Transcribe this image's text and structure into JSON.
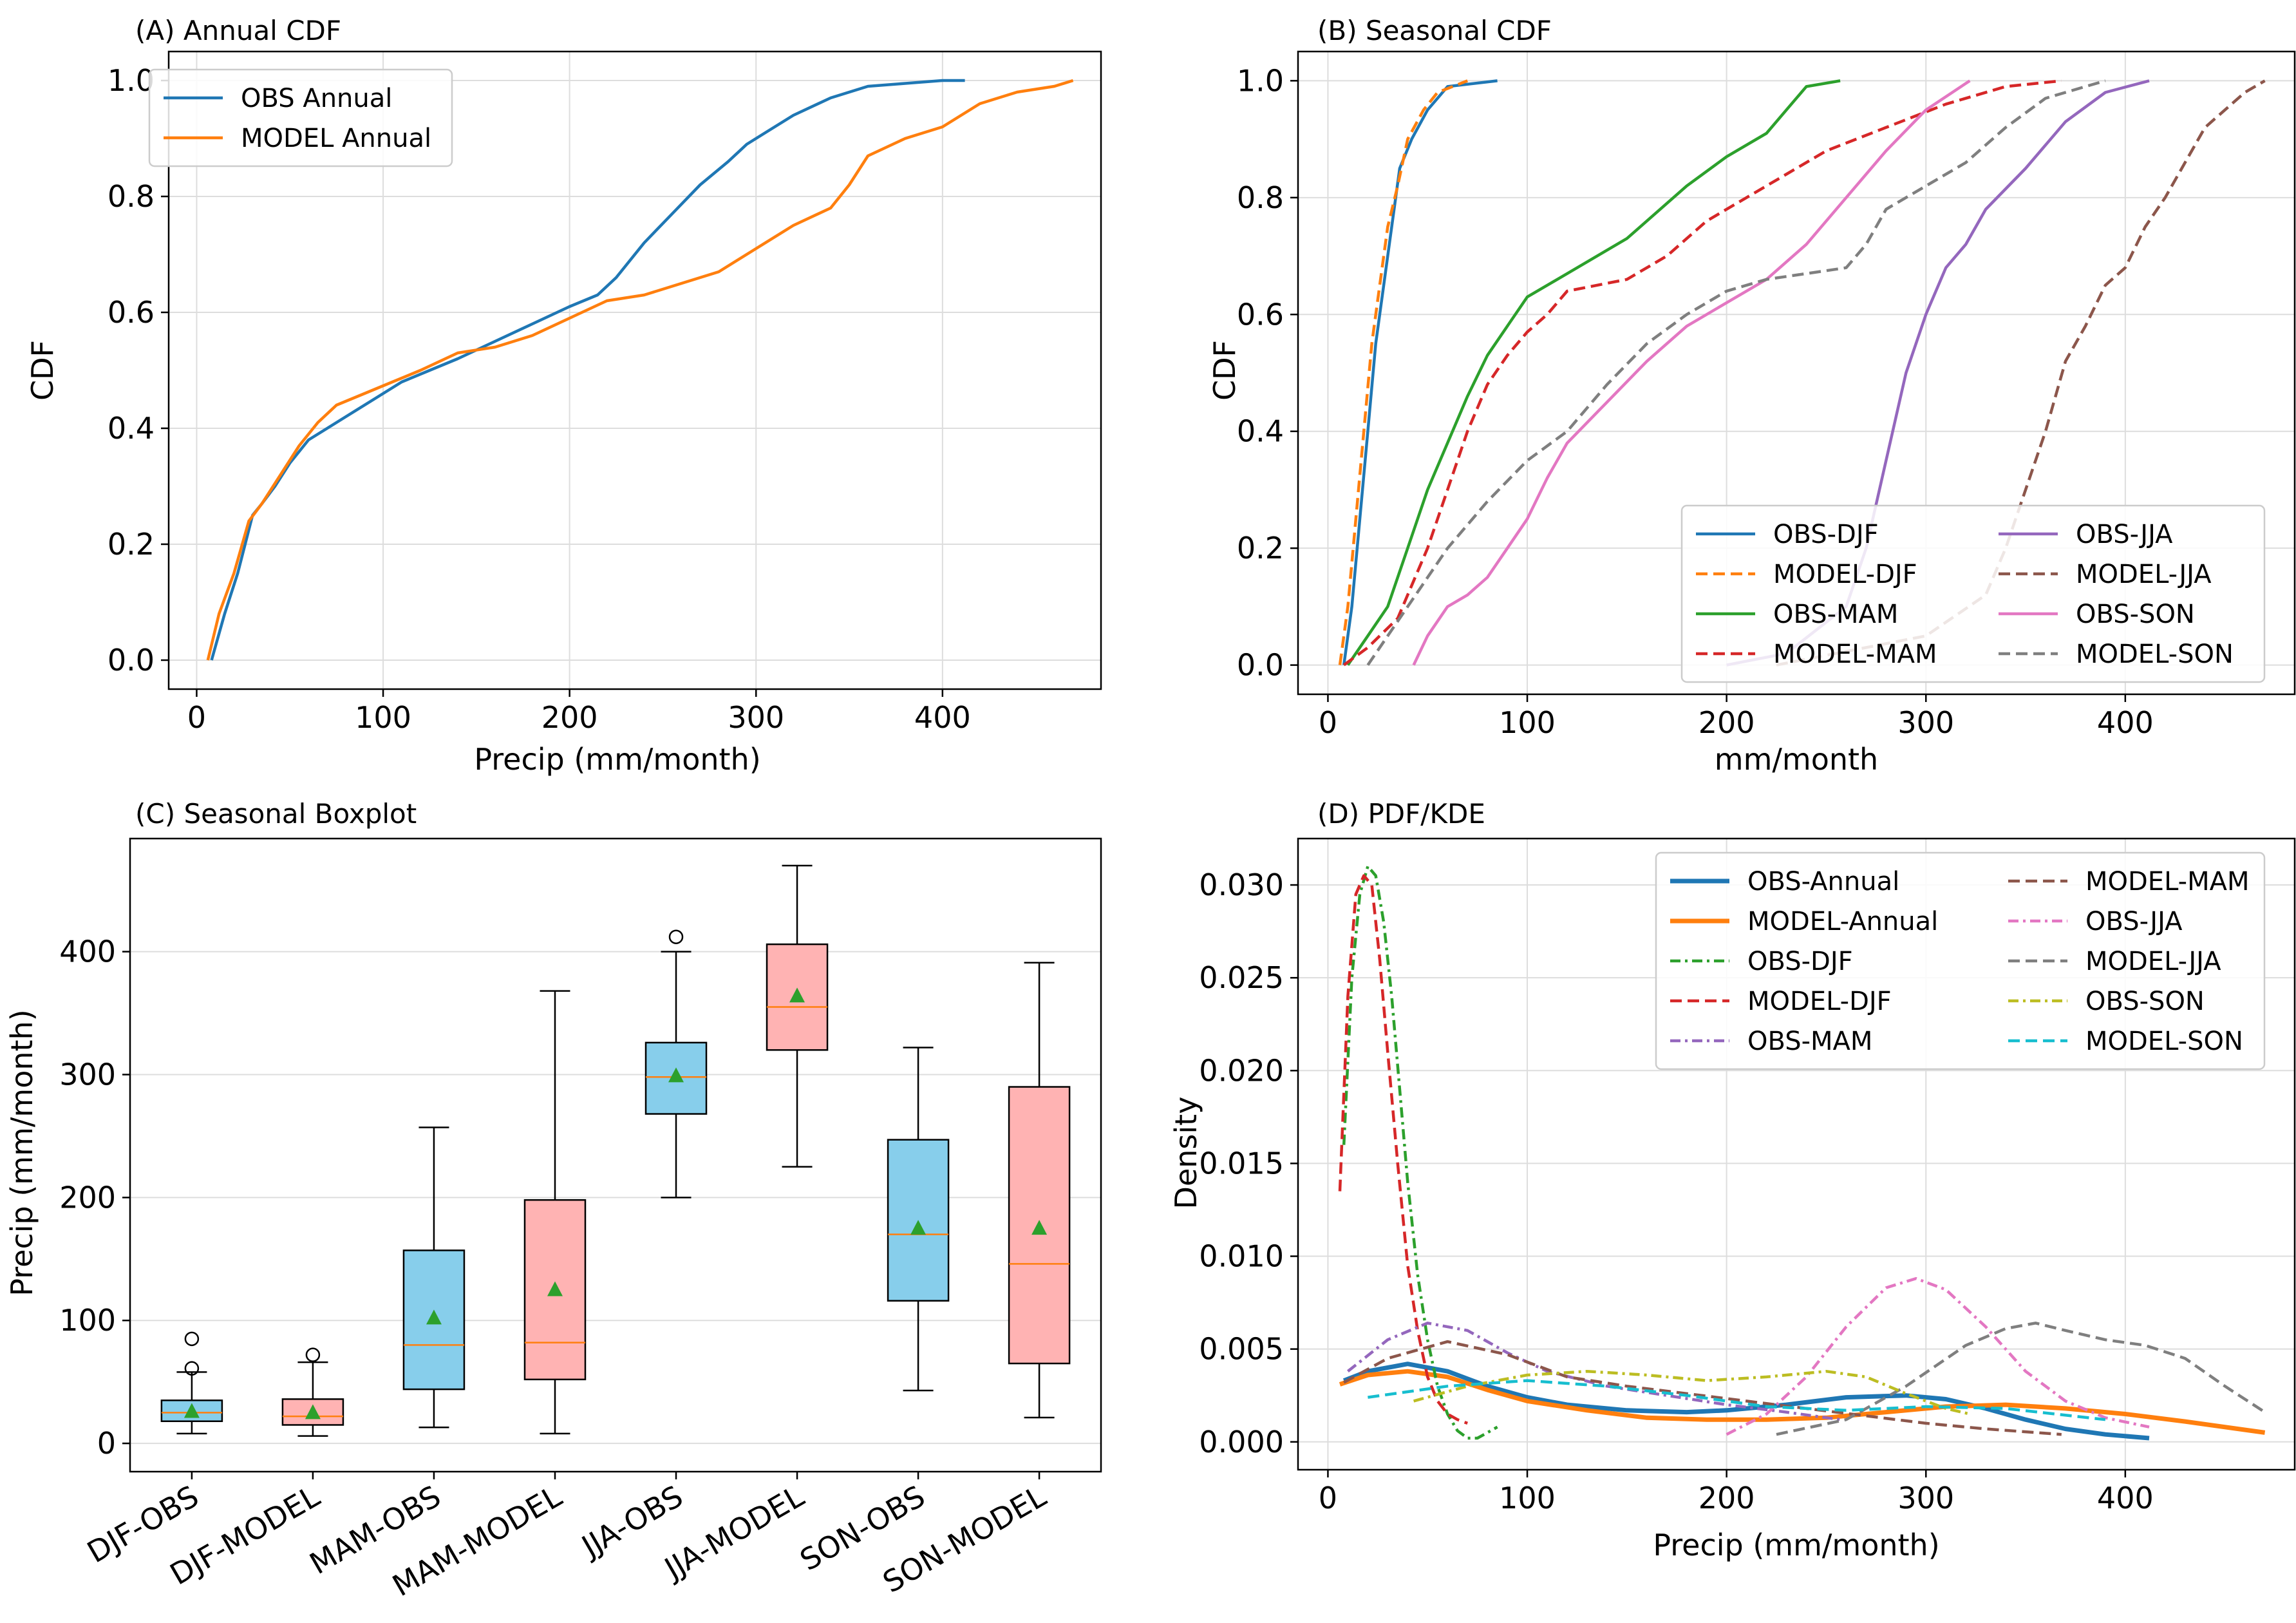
{
  "colors": {
    "c0": "#1f77b4",
    "c1": "#ff7f0e",
    "c2": "#2ca02c",
    "c3": "#d62728",
    "c4": "#9467bd",
    "c5": "#8c564b",
    "c6": "#e377c2",
    "c7": "#7f7f7f",
    "c8": "#bcbd22",
    "c9": "#17becf",
    "box_obs": "#87ceeb",
    "box_model": "#ffb3b3"
  },
  "chart_data": [
    {
      "id": "A",
      "type": "line",
      "title": "(A) Annual CDF",
      "xlabel": "Precip (mm/month)",
      "ylabel": "CDF",
      "xlim": [
        -15,
        485
      ],
      "ylim": [
        -0.05,
        1.05
      ],
      "xticks": [
        0,
        100,
        200,
        300,
        400
      ],
      "yticks": [
        0.0,
        0.2,
        0.4,
        0.6,
        0.8,
        1.0
      ],
      "legend_loc": "upper-left",
      "series": [
        {
          "name": "OBS Annual",
          "color": "c0",
          "dash": "solid",
          "x": [
            8,
            15,
            22,
            30,
            35,
            42,
            50,
            60,
            70,
            80,
            95,
            110,
            125,
            140,
            160,
            180,
            200,
            215,
            225,
            240,
            255,
            270,
            285,
            295,
            305,
            320,
            340,
            360,
            380,
            400,
            412
          ],
          "y": [
            0,
            0.08,
            0.15,
            0.25,
            0.27,
            0.3,
            0.34,
            0.38,
            0.4,
            0.42,
            0.45,
            0.48,
            0.5,
            0.52,
            0.55,
            0.58,
            0.61,
            0.63,
            0.66,
            0.72,
            0.77,
            0.82,
            0.86,
            0.89,
            0.91,
            0.94,
            0.97,
            0.99,
            0.995,
            1.0,
            1.0
          ]
        },
        {
          "name": "MODEL Annual",
          "color": "c1",
          "dash": "solid",
          "x": [
            6,
            12,
            20,
            28,
            35,
            45,
            55,
            65,
            75,
            90,
            105,
            120,
            140,
            160,
            180,
            200,
            220,
            240,
            260,
            280,
            300,
            320,
            340,
            350,
            360,
            380,
            400,
            420,
            440,
            460,
            470
          ],
          "y": [
            0,
            0.08,
            0.15,
            0.24,
            0.27,
            0.32,
            0.37,
            0.41,
            0.44,
            0.46,
            0.48,
            0.5,
            0.53,
            0.54,
            0.56,
            0.59,
            0.62,
            0.63,
            0.65,
            0.67,
            0.71,
            0.75,
            0.78,
            0.82,
            0.87,
            0.9,
            0.92,
            0.96,
            0.98,
            0.99,
            1.0
          ]
        }
      ]
    },
    {
      "id": "B",
      "type": "line",
      "title": "(B) Seasonal CDF",
      "xlabel": "mm/month",
      "ylabel": "CDF",
      "xlim": [
        -15,
        485
      ],
      "ylim": [
        -0.05,
        1.05
      ],
      "xticks": [
        0,
        100,
        200,
        300,
        400
      ],
      "yticks": [
        0.0,
        0.2,
        0.4,
        0.6,
        0.8,
        1.0
      ],
      "legend_loc": "lower-right",
      "legend_cols": 2,
      "series": [
        {
          "name": "OBS-DJF",
          "color": "c0",
          "dash": "solid",
          "x": [
            8,
            12,
            16,
            20,
            24,
            28,
            32,
            36,
            42,
            50,
            60,
            85
          ],
          "y": [
            0,
            0.1,
            0.25,
            0.4,
            0.55,
            0.65,
            0.75,
            0.85,
            0.9,
            0.95,
            0.99,
            1.0
          ]
        },
        {
          "name": "MODEL-DJF",
          "color": "c1",
          "dash": "dash",
          "x": [
            6,
            10,
            14,
            18,
            22,
            26,
            30,
            35,
            40,
            48,
            55,
            70
          ],
          "y": [
            0,
            0.1,
            0.25,
            0.4,
            0.55,
            0.65,
            0.75,
            0.82,
            0.9,
            0.95,
            0.98,
            1.0
          ]
        },
        {
          "name": "OBS-MAM",
          "color": "c2",
          "dash": "solid",
          "x": [
            10,
            20,
            30,
            40,
            50,
            60,
            70,
            80,
            90,
            100,
            120,
            150,
            180,
            200,
            220,
            230,
            240,
            257
          ],
          "y": [
            0,
            0.05,
            0.1,
            0.2,
            0.3,
            0.38,
            0.46,
            0.53,
            0.58,
            0.63,
            0.67,
            0.73,
            0.82,
            0.87,
            0.91,
            0.95,
            0.99,
            1.0
          ]
        },
        {
          "name": "MODEL-MAM",
          "color": "c3",
          "dash": "dash",
          "x": [
            8,
            20,
            35,
            50,
            60,
            70,
            80,
            90,
            100,
            110,
            120,
            150,
            170,
            190,
            210,
            230,
            250,
            280,
            310,
            340,
            368
          ],
          "y": [
            0,
            0.03,
            0.08,
            0.2,
            0.3,
            0.4,
            0.48,
            0.53,
            0.57,
            0.6,
            0.64,
            0.66,
            0.7,
            0.76,
            0.8,
            0.84,
            0.88,
            0.92,
            0.96,
            0.99,
            1.0
          ]
        },
        {
          "name": "OBS-JJA",
          "color": "c4",
          "dash": "solid",
          "x": [
            200,
            230,
            260,
            270,
            280,
            290,
            300,
            310,
            320,
            330,
            350,
            370,
            390,
            412
          ],
          "y": [
            0,
            0.02,
            0.1,
            0.2,
            0.35,
            0.5,
            0.6,
            0.68,
            0.72,
            0.78,
            0.85,
            0.93,
            0.98,
            1.0
          ]
        },
        {
          "name": "MODEL-JJA",
          "color": "c5",
          "dash": "dash",
          "x": [
            225,
            300,
            330,
            340,
            350,
            360,
            370,
            380,
            390,
            400,
            410,
            420,
            430,
            440,
            450,
            460,
            470
          ],
          "y": [
            0,
            0.05,
            0.12,
            0.2,
            0.3,
            0.4,
            0.52,
            0.58,
            0.65,
            0.68,
            0.75,
            0.8,
            0.86,
            0.92,
            0.95,
            0.98,
            1.0
          ]
        },
        {
          "name": "OBS-SON",
          "color": "c6",
          "dash": "solid",
          "x": [
            43,
            50,
            60,
            70,
            80,
            90,
            100,
            110,
            120,
            140,
            160,
            180,
            200,
            220,
            240,
            260,
            280,
            300,
            322
          ],
          "y": [
            0,
            0.05,
            0.1,
            0.12,
            0.15,
            0.2,
            0.25,
            0.32,
            0.38,
            0.45,
            0.52,
            0.58,
            0.62,
            0.66,
            0.72,
            0.8,
            0.88,
            0.95,
            1.0
          ]
        },
        {
          "name": "MODEL-SON",
          "color": "c7",
          "dash": "dash",
          "x": [
            20,
            40,
            60,
            80,
            100,
            120,
            140,
            160,
            180,
            200,
            220,
            240,
            260,
            270,
            280,
            300,
            320,
            340,
            360,
            380,
            390
          ],
          "y": [
            0,
            0.1,
            0.2,
            0.28,
            0.35,
            0.4,
            0.48,
            0.55,
            0.6,
            0.64,
            0.66,
            0.67,
            0.68,
            0.72,
            0.78,
            0.82,
            0.86,
            0.92,
            0.97,
            0.99,
            1.0
          ]
        }
      ]
    },
    {
      "id": "C",
      "type": "box",
      "title": "(C) Seasonal Boxplot",
      "ylabel": "Precip (mm/month)",
      "ylim": [
        -23,
        492
      ],
      "yticks": [
        0,
        100,
        200,
        300,
        400
      ],
      "categories": [
        "DJF-OBS",
        "DJF-MODEL",
        "MAM-OBS",
        "MAM-MODEL",
        "JJA-OBS",
        "JJA-MODEL",
        "SON-OBS",
        "SON-MODEL"
      ],
      "boxes": [
        {
          "label": "DJF-OBS",
          "group": "obs",
          "whislo": 8,
          "q1": 18,
          "med": 25,
          "q3": 35,
          "whishi": 58,
          "mean": 26,
          "fliers": [
            61,
            85
          ]
        },
        {
          "label": "DJF-MODEL",
          "group": "model",
          "whislo": 6,
          "q1": 15,
          "med": 22,
          "q3": 36,
          "whishi": 66,
          "mean": 25,
          "fliers": [
            72
          ]
        },
        {
          "label": "MAM-OBS",
          "group": "obs",
          "whislo": 13,
          "q1": 44,
          "med": 80,
          "q3": 157,
          "whishi": 257,
          "mean": 102,
          "fliers": []
        },
        {
          "label": "MAM-MODEL",
          "group": "model",
          "whislo": 8,
          "q1": 52,
          "med": 82,
          "q3": 198,
          "whishi": 368,
          "mean": 125,
          "fliers": []
        },
        {
          "label": "JJA-OBS",
          "group": "obs",
          "whislo": 200,
          "q1": 268,
          "med": 298,
          "q3": 326,
          "whishi": 400,
          "mean": 299,
          "fliers": [
            412
          ]
        },
        {
          "label": "JJA-MODEL",
          "group": "model",
          "whislo": 225,
          "q1": 320,
          "med": 355,
          "q3": 406,
          "whishi": 470,
          "mean": 364,
          "fliers": []
        },
        {
          "label": "SON-OBS",
          "group": "obs",
          "whislo": 43,
          "q1": 116,
          "med": 170,
          "q3": 247,
          "whishi": 322,
          "mean": 175,
          "fliers": []
        },
        {
          "label": "SON-MODEL",
          "group": "model",
          "whislo": 21,
          "q1": 65,
          "med": 146,
          "q3": 290,
          "whishi": 391,
          "mean": 175,
          "fliers": []
        }
      ]
    },
    {
      "id": "D",
      "type": "line",
      "title": "(D) PDF/KDE",
      "xlabel": "Precip (mm/month)",
      "ylabel": "Density",
      "xlim": [
        -15,
        485
      ],
      "ylim": [
        -0.0015,
        0.0325
      ],
      "xticks": [
        0,
        100,
        200,
        300,
        400
      ],
      "yticks": [
        0.0,
        0.005,
        0.01,
        0.015,
        0.02,
        0.025,
        0.03
      ],
      "ytick_labels": [
        "0.000",
        "0.005",
        "0.010",
        "0.015",
        "0.020",
        "0.025",
        "0.030"
      ],
      "legend_loc": "upper-right",
      "legend_cols": 2,
      "series": [
        {
          "name": "OBS-Annual",
          "color": "c0",
          "dash": "solid",
          "width": 7,
          "x": [
            8,
            20,
            40,
            60,
            80,
            100,
            120,
            150,
            180,
            200,
            230,
            260,
            290,
            310,
            330,
            350,
            370,
            390,
            412
          ],
          "y": [
            0.0033,
            0.0038,
            0.0042,
            0.0038,
            0.003,
            0.0024,
            0.002,
            0.0017,
            0.0016,
            0.0017,
            0.002,
            0.0024,
            0.0025,
            0.0023,
            0.0018,
            0.0012,
            0.0007,
            0.0004,
            0.0002
          ]
        },
        {
          "name": "MODEL-Annual",
          "color": "c1",
          "dash": "solid",
          "width": 7,
          "x": [
            6,
            20,
            40,
            60,
            80,
            100,
            130,
            160,
            190,
            220,
            250,
            280,
            310,
            340,
            370,
            400,
            430,
            470
          ],
          "y": [
            0.0031,
            0.0036,
            0.0038,
            0.0035,
            0.0028,
            0.0022,
            0.0017,
            0.0013,
            0.0012,
            0.0012,
            0.0013,
            0.0016,
            0.0019,
            0.002,
            0.0018,
            0.0015,
            0.0011,
            0.0005
          ]
        },
        {
          "name": "OBS-DJF",
          "color": "c2",
          "dash": "dashdot",
          "x": [
            8,
            12,
            16,
            20,
            24,
            28,
            32,
            36,
            40,
            45,
            50,
            55,
            60,
            65,
            70,
            75,
            80,
            85
          ],
          "y": [
            0.016,
            0.025,
            0.0295,
            0.031,
            0.0305,
            0.028,
            0.024,
            0.019,
            0.014,
            0.009,
            0.0055,
            0.003,
            0.0015,
            0.0006,
            0.0002,
            0.0002,
            0.0005,
            0.0008
          ]
        },
        {
          "name": "MODEL-DJF",
          "color": "c3",
          "dash": "dash",
          "x": [
            6,
            10,
            14,
            18,
            22,
            26,
            30,
            35,
            40,
            45,
            50,
            55,
            60,
            65,
            70
          ],
          "y": [
            0.0135,
            0.024,
            0.0295,
            0.0305,
            0.03,
            0.026,
            0.021,
            0.015,
            0.0095,
            0.006,
            0.0035,
            0.0022,
            0.0015,
            0.0012,
            0.001
          ]
        },
        {
          "name": "OBS-MAM",
          "color": "c4",
          "dash": "dashdot",
          "x": [
            10,
            30,
            50,
            70,
            90,
            110,
            140,
            170,
            200,
            230,
            257
          ],
          "y": [
            0.0038,
            0.0055,
            0.0064,
            0.006,
            0.0048,
            0.0038,
            0.003,
            0.0025,
            0.002,
            0.0016,
            0.0012
          ]
        },
        {
          "name": "MODEL-MAM",
          "color": "c5",
          "dash": "dash",
          "x": [
            8,
            30,
            60,
            90,
            120,
            150,
            180,
            210,
            240,
            270,
            300,
            330,
            368
          ],
          "y": [
            0.0032,
            0.0045,
            0.0054,
            0.0047,
            0.0035,
            0.003,
            0.0026,
            0.0022,
            0.0018,
            0.0014,
            0.001,
            0.0007,
            0.0004
          ]
        },
        {
          "name": "OBS-JJA",
          "color": "c6",
          "dash": "dashdot",
          "x": [
            200,
            220,
            240,
            260,
            280,
            295,
            310,
            330,
            350,
            370,
            390,
            412
          ],
          "y": [
            0.0004,
            0.0015,
            0.0035,
            0.0062,
            0.0083,
            0.0088,
            0.0082,
            0.0062,
            0.0038,
            0.0022,
            0.0013,
            0.0008
          ]
        },
        {
          "name": "MODEL-JJA",
          "color": "c7",
          "dash": "dash",
          "x": [
            225,
            260,
            290,
            320,
            340,
            355,
            370,
            390,
            410,
            430,
            450,
            470
          ],
          "y": [
            0.0004,
            0.0012,
            0.003,
            0.0052,
            0.0061,
            0.0064,
            0.006,
            0.0055,
            0.0052,
            0.0045,
            0.003,
            0.0016
          ]
        },
        {
          "name": "OBS-SON",
          "color": "c8",
          "dash": "dashdot",
          "x": [
            43,
            70,
            100,
            130,
            160,
            190,
            220,
            250,
            270,
            290,
            310,
            322
          ],
          "y": [
            0.0022,
            0.003,
            0.0036,
            0.0038,
            0.0036,
            0.0033,
            0.0035,
            0.0038,
            0.0035,
            0.0026,
            0.0018,
            0.0015
          ]
        },
        {
          "name": "MODEL-SON",
          "color": "c9",
          "dash": "dash",
          "x": [
            20,
            60,
            100,
            140,
            180,
            220,
            260,
            300,
            340,
            390
          ],
          "y": [
            0.0024,
            0.003,
            0.0033,
            0.003,
            0.0025,
            0.0019,
            0.0017,
            0.0019,
            0.0018,
            0.0012
          ]
        }
      ]
    }
  ]
}
